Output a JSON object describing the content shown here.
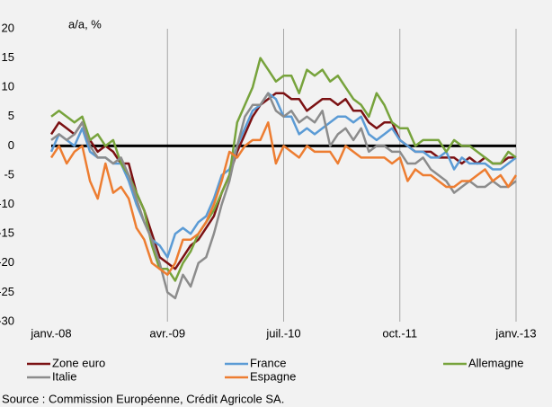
{
  "chart_data": {
    "type": "line",
    "y_axis_label": "a/a, %",
    "source": "Source :  Commission Européenne, Crédit Agricole SA.",
    "categories": [
      "janv.-08",
      null,
      null,
      null,
      null,
      null,
      null,
      null,
      null,
      null,
      null,
      null,
      null,
      null,
      null,
      "avr.-09",
      null,
      null,
      null,
      null,
      null,
      null,
      null,
      null,
      null,
      null,
      null,
      null,
      null,
      null,
      "juil.-10",
      null,
      null,
      null,
      null,
      null,
      null,
      null,
      null,
      null,
      null,
      null,
      null,
      null,
      null,
      "oct.-11",
      null,
      null,
      null,
      null,
      null,
      null,
      null,
      null,
      null,
      null,
      null,
      null,
      null,
      null,
      "janv.-13"
    ],
    "ylim": [
      -30,
      20
    ],
    "yticks": [
      20,
      15,
      10,
      5,
      0,
      -5,
      -10,
      -15,
      -20,
      -25,
      -30
    ],
    "grid": true,
    "series": [
      {
        "name": "Zone euro",
        "color": "#7b1113",
        "values": [
          2,
          4,
          3,
          2,
          4,
          1,
          -1,
          0,
          -1,
          -3,
          -3,
          -8,
          -11,
          -15,
          -19,
          -20,
          -21,
          -19,
          -17,
          -16,
          -14,
          -12,
          -8,
          -5,
          -1,
          2,
          5,
          7,
          8,
          9,
          9,
          8,
          8,
          6,
          7,
          8,
          8,
          7,
          8,
          6,
          6,
          4,
          3,
          4,
          4,
          1,
          0,
          -1,
          -1,
          -1,
          -2,
          -2,
          -2,
          -3,
          -2,
          -3,
          -2,
          -3,
          -3,
          -2,
          -2
        ]
      },
      {
        "name": "France",
        "color": "#5b9bd5",
        "values": [
          -1,
          2,
          1,
          0,
          3,
          -1,
          -2,
          -2,
          -3,
          -3,
          -6,
          -10,
          -13,
          -16,
          -17,
          -19,
          -15,
          -14,
          -15,
          -13,
          -12,
          -9,
          -5,
          -4,
          0,
          3,
          6,
          7,
          9,
          8,
          5,
          5,
          2,
          3,
          2,
          3,
          4,
          5,
          5,
          4,
          5,
          2,
          1,
          2,
          3,
          1,
          0,
          -1,
          -1,
          -2,
          -2,
          -1,
          -4,
          -2,
          -3,
          -3,
          -3,
          -4,
          -4,
          -3,
          -2
        ]
      },
      {
        "name": "Allemagne",
        "color": "#77a33c",
        "values": [
          5,
          6,
          5,
          4,
          5,
          1,
          2,
          0,
          1,
          -3,
          -5,
          -8,
          -11,
          -17,
          -21,
          -21,
          -23,
          -20,
          -18,
          -15,
          -13,
          -11,
          -8,
          -5,
          4,
          7,
          10,
          15,
          13,
          11,
          12,
          12,
          9,
          13,
          12,
          13,
          11,
          12,
          10,
          8,
          7,
          5,
          9,
          7,
          4,
          3,
          3,
          0,
          1,
          1,
          1,
          -1,
          1,
          0,
          0,
          -1,
          -2,
          -3,
          -3,
          -1,
          -2
        ]
      },
      {
        "name": "Italie",
        "color": "#8c8c8c",
        "values": [
          1,
          2,
          1,
          2,
          4,
          0,
          -2,
          -2,
          -3,
          -2,
          -5,
          -9,
          -13,
          -16,
          -20,
          -25,
          -26,
          -22,
          -24,
          -20,
          -19,
          -15,
          -10,
          -6,
          0,
          5,
          7,
          7,
          9,
          6,
          5,
          6,
          4,
          5,
          4,
          6,
          0,
          2,
          3,
          1,
          3,
          -1,
          0,
          0,
          -1,
          -1,
          -3,
          -3,
          -2,
          -4,
          -5,
          -6,
          -8,
          -7,
          -6,
          -7,
          -7,
          -6,
          -7,
          -7,
          -6
        ]
      },
      {
        "name": "Espagne",
        "color": "#ed7d31",
        "values": [
          -2,
          0,
          -3,
          -1,
          0,
          -6,
          -9,
          -3,
          -8,
          -7,
          -9,
          -14,
          -16,
          -20,
          -21,
          -22,
          -20,
          -16,
          -16,
          -15,
          -13,
          -10,
          -6,
          -1,
          -2,
          0,
          1,
          1,
          4,
          -3,
          0,
          -1,
          -2,
          0,
          -1,
          -1,
          -1,
          -3,
          0,
          -1,
          -2,
          -2,
          -2,
          -2,
          -3,
          -2,
          -6,
          -4,
          -5,
          -5,
          -6,
          -7,
          -7,
          -6,
          -6,
          -5,
          -4,
          -6,
          -5,
          -7,
          -5
        ]
      }
    ]
  }
}
